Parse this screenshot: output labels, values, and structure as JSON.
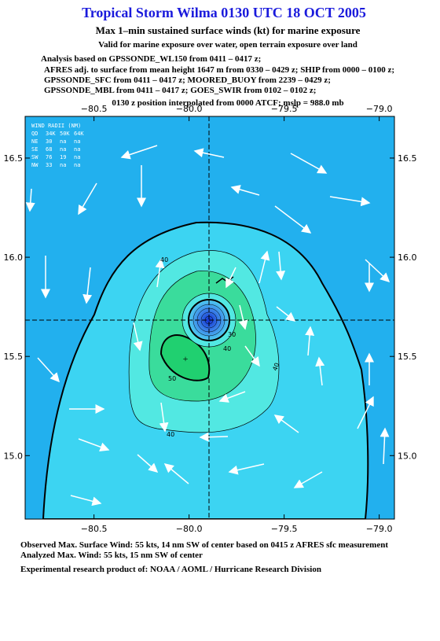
{
  "header": {
    "title": "Tropical Storm Wilma 0130 UTC 18 OCT 2005",
    "subtitle": "Max 1–min sustained surface winds (kt) for marine exposure",
    "note": "Valid for marine exposure over water, open terrain exposure over land",
    "analysis": [
      "Analysis based on  GPSSONDE_WL150 from 0411 – 0417 z;",
      "AFRES adj. to surface from mean height 1647 m from 0330 – 0429 z;  SHIP from 0000 – 0100 z;",
      "GPSSONDE_SFC from 0411 – 0417 z;  MOORED_BUOY from 2239 – 0429 z;",
      "GPSSONDE_MBL from 0411 – 0417 z;  GOES_SWIR from 0102 – 0102 z;"
    ],
    "position": "0130 z position interpolated from 0000 ATCF; mslp = 988.0 mb"
  },
  "map": {
    "xlim": [
      -80.862,
      -78.92
    ],
    "ylim": [
      14.68,
      16.71
    ],
    "xticks": [
      {
        "value": -80.5,
        "label": "−80.5"
      },
      {
        "value": -80.0,
        "label": "−80.0"
      },
      {
        "value": -79.5,
        "label": "−79.5"
      },
      {
        "value": -79.0,
        "label": "−79.0"
      }
    ],
    "yticks": [
      16.5,
      {
        "value": 16.0,
        "label": "16.0"
      },
      15.5,
      {
        "value": 15.0,
        "label": "15.0"
      }
    ],
    "radii": {
      "title": "WIND RADII (NM)",
      "header": [
        "QD",
        "34K",
        "50K",
        "64K"
      ],
      "rows": [
        [
          "NE",
          30,
          "na",
          "na"
        ],
        [
          "SE",
          68,
          "na",
          "na"
        ],
        [
          "SW",
          76,
          19,
          "na"
        ],
        [
          "NW",
          33,
          "na",
          "na"
        ]
      ]
    },
    "contour_labels": [
      "40",
      "40",
      "30",
      "50",
      "40",
      "40"
    ]
  },
  "footer": {
    "observed": "Observed Max. Surface Wind: 55 kts, 14 nm SW of center based on 0415 z AFRES sfc measurement",
    "analyzed": "Analyzed Max. Wind: 55 kts, 15 nm SW of center",
    "credit": "Experimental research product of:  NOAA / AOML / Hurricane Research Division"
  }
}
